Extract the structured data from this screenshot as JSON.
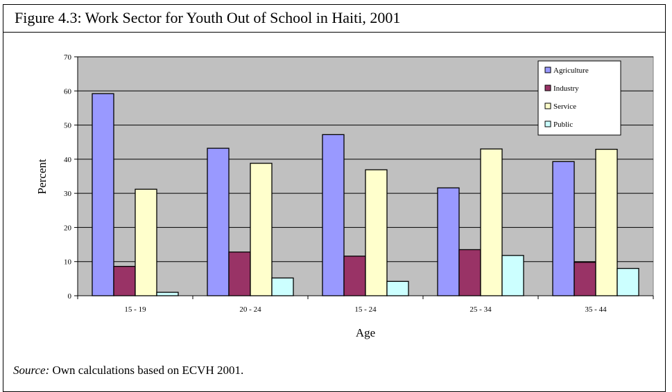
{
  "figure": {
    "title": "Figure 4.3: Work Sector for Youth Out of School in Haiti, 2001",
    "source_label": "Source:",
    "source_text": " Own calculations based on ECVH 2001."
  },
  "chart_data": {
    "type": "bar",
    "xlabel": "Age",
    "ylabel": "Percent",
    "ylim": [
      0,
      70
    ],
    "yticks": [
      0,
      10,
      20,
      30,
      40,
      50,
      60,
      70
    ],
    "grid": true,
    "legend_position": "top-right",
    "categories": [
      "15 - 19",
      "20 - 24",
      "15 - 24",
      "25 - 34",
      "35 - 44"
    ],
    "series": [
      {
        "name": "Agriculture",
        "color": "#9999ff",
        "values": [
          59.2,
          43.2,
          47.2,
          31.6,
          39.3
        ]
      },
      {
        "name": "Industry",
        "color": "#993366",
        "values": [
          8.6,
          12.8,
          11.6,
          13.5,
          9.8
        ]
      },
      {
        "name": "Service",
        "color": "#ffffcc",
        "values": [
          31.2,
          38.8,
          36.9,
          43.0,
          42.9
        ]
      },
      {
        "name": "Public",
        "color": "#ccffff",
        "values": [
          1.0,
          5.2,
          4.2,
          11.8,
          8.0
        ]
      }
    ],
    "plot_background": "#c0c0c0"
  }
}
